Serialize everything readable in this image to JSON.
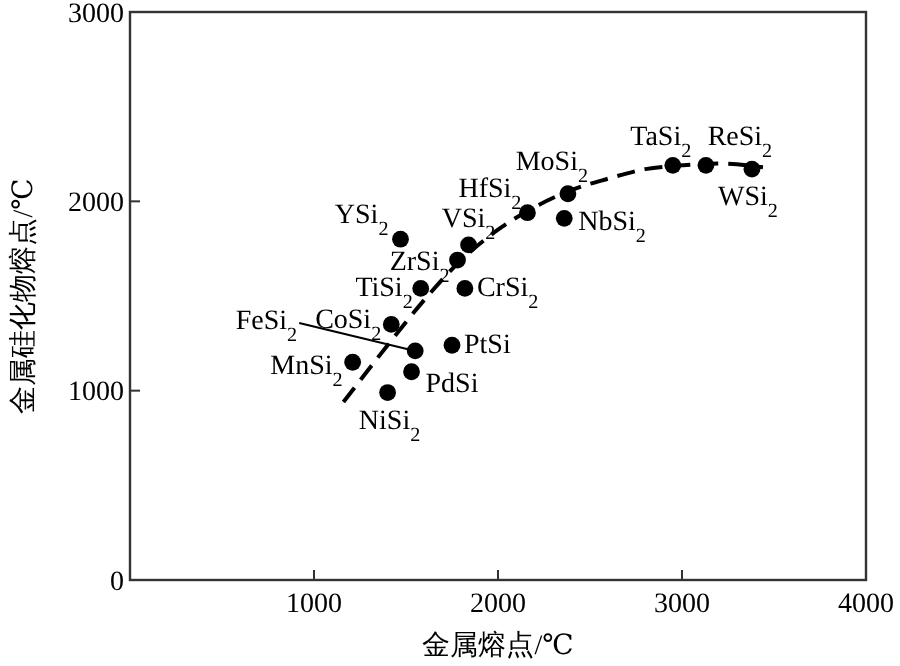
{
  "chart_data": {
    "type": "scatter",
    "xlabel": "金属熔点/℃",
    "ylabel": "金属硅化物熔点/℃",
    "xlim": [
      0,
      4000
    ],
    "xticks": [
      1000,
      2000,
      3000,
      4000
    ],
    "ylim": [
      0,
      3000
    ],
    "yticks": [
      0,
      1000,
      2000,
      3000
    ],
    "grid": false,
    "series": [
      {
        "color": "#000000",
        "marker": "circle",
        "x": [
          1470,
          1840,
          2160,
          2380,
          2360,
          2950,
          3130,
          3380,
          1780,
          1580,
          1820,
          1420,
          1550,
          1750,
          1210,
          1530,
          1400
        ],
        "values": [
          1800,
          1770,
          1940,
          2040,
          1910,
          2190,
          2190,
          2170,
          1690,
          1540,
          1540,
          1350,
          1210,
          1240,
          1150,
          1100,
          990
        ]
      },
      {
        "type": "line",
        "color": "#000000",
        "line_style": "dashed",
        "x": [
          1160,
          1400,
          1600,
          1800,
          2000,
          2200,
          2400,
          2600,
          2800,
          3000,
          3200,
          3440
        ],
        "values": [
          940,
          1240,
          1480,
          1690,
          1850,
          1970,
          2060,
          2120,
          2170,
          2190,
          2200,
          2180
        ]
      }
    ],
    "annotations": [
      {
        "text": "YSi$_{2}$",
        "x": 1470,
        "y": 1800
      },
      {
        "text": "VSi$_{2}$",
        "x": 1840,
        "y": 1770
      },
      {
        "text": "HfSi$_{2}$",
        "x": 2160,
        "y": 1940
      },
      {
        "text": "MoSi$_{2}$",
        "x": 2380,
        "y": 2040
      },
      {
        "text": "NbSi$_{2}$",
        "x": 2360,
        "y": 1910
      },
      {
        "text": "TaSi$_{2}$",
        "x": 2950,
        "y": 2190
      },
      {
        "text": "ReSi$_{2}$",
        "x": 3130,
        "y": 2190
      },
      {
        "text": "WSi$_{2}$",
        "x": 3380,
        "y": 2170
      },
      {
        "text": "ZrSi$_{2}$",
        "x": 1780,
        "y": 1690
      },
      {
        "text": "TiSi$_{2}$",
        "x": 1580,
        "y": 1540
      },
      {
        "text": "CrSi$_{2}$",
        "x": 1820,
        "y": 1540
      },
      {
        "text": "CoSi$_{2}$",
        "x": 1420,
        "y": 1350
      },
      {
        "text": "FeSi$_{2}$",
        "x": 1550,
        "y": 1210
      },
      {
        "text": "PtSi",
        "x": 1750,
        "y": 1240
      },
      {
        "text": "MnSi$_{2}$",
        "x": 1210,
        "y": 1150
      },
      {
        "text": "PdSi",
        "x": 1530,
        "y": 1100
      },
      {
        "text": "NiSi$_{2}$",
        "x": 1400,
        "y": 990
      }
    ]
  }
}
